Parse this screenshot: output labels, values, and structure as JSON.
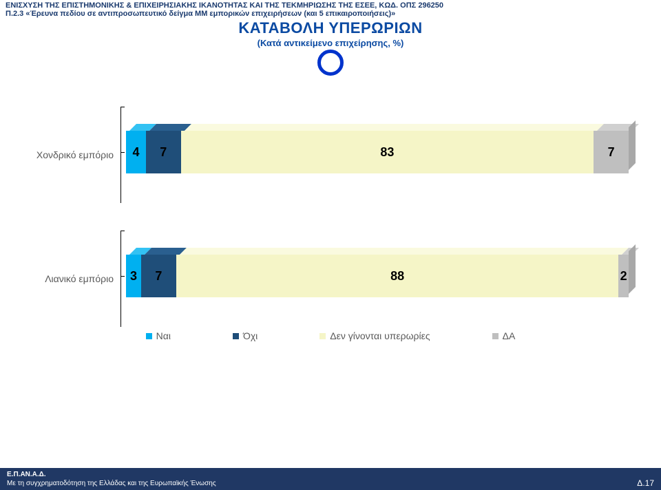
{
  "header": {
    "line1": "ΕΝΙΣΧΥΣΗ ΤΗΣ ΕΠΙΣΤΗΜΟΝΙΚΗΣ & ΕΠΙΧΕΙΡΗΣΙΑΚΗΣ ΙΚΑΝΟΤΗΤΑΣ ΚΑΙ ΤΗΣ ΤΕΚΜΗΡΙΩΣΗΣ ΤΗΣ ΕΣΕΕ, ΚΩΔ. ΟΠΣ 296250",
    "line2": "Π.2.3 «Έρευνα πεδίου σε αντιπροσωπευτικό δείγμα ΜΜ εμπορικών επιχειρήσεων (και 5 επικαιροποιήσεις)»"
  },
  "title": {
    "main": "ΚΑΤΑΒΟΛΗ ΥΠΕΡΩΡΙΩΝ",
    "sub": "(Κατά αντικείμενο επιχείρησης, %)"
  },
  "chart": {
    "type": "stacked-bar-3d-horizontal",
    "colors": {
      "yes": "#00b0f0",
      "no": "#1f4e79",
      "none": "#f5f5c7",
      "da": "#bfbfbf",
      "yes_top": "#33c2f3",
      "no_top": "#2a5f8f",
      "none_top": "#fafadf",
      "da_top": "#d0d0d0",
      "da_side": "#a8a8a8"
    },
    "categories": [
      {
        "label": "Χονδρικό εμπόριο",
        "values": [
          4,
          7,
          83,
          7
        ]
      },
      {
        "label": "Λιανικό εμπόριο",
        "values": [
          3,
          7,
          88,
          2
        ]
      }
    ],
    "legend": [
      {
        "label": "Ναι",
        "color": "#00b0f0"
      },
      {
        "label": "Όχι",
        "color": "#1f4e79"
      },
      {
        "label": "Δεν γίνονται υπερωρίες",
        "color": "#f5f5c7"
      },
      {
        "label": "ΔΑ",
        "color": "#bfbfbf"
      }
    ]
  },
  "footer": {
    "line1": "Ε.Π.ΑΝ.Α.Δ.",
    "line2": "Με τη συγχρηματοδότηση της Ελλάδας και της Ευρωπαϊκής Ένωσης",
    "page": "Δ.17"
  }
}
